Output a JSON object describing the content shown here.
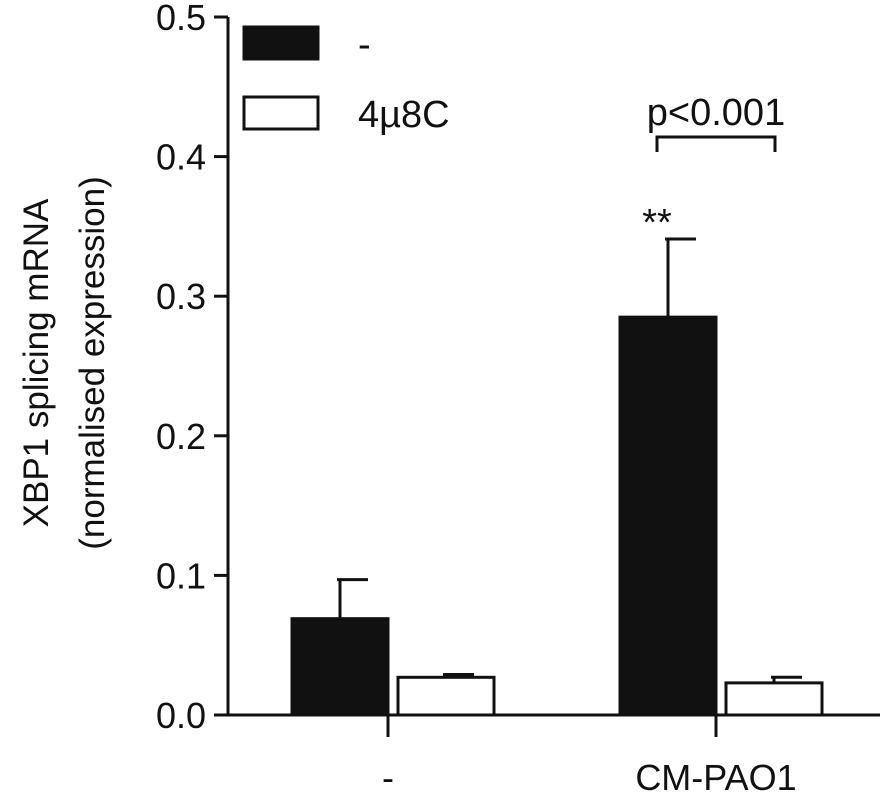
{
  "chart_data": {
    "type": "bar",
    "ylabel_line1": "XBP1 splicing mRNA",
    "ylabel_line2": "(normalised expression)",
    "xlabel": "",
    "ylim": [
      0,
      0.5
    ],
    "yticks": [
      "0.0",
      "0.1",
      "0.2",
      "0.3",
      "0.4",
      "0.5"
    ],
    "categories": [
      "-",
      "CM-PAO1"
    ],
    "series": [
      {
        "name": "-",
        "values": [
          0.069,
          0.285
        ],
        "errors": [
          0.028,
          0.056
        ],
        "color": "#111111"
      },
      {
        "name": "4µ8C",
        "values": [
          0.027,
          0.023
        ],
        "errors": [
          0.002,
          0.004
        ],
        "color": "#ffffff"
      }
    ],
    "legend_position": "top-left",
    "annotations": {
      "significance": "**",
      "pvalue": "p<0.001"
    }
  }
}
